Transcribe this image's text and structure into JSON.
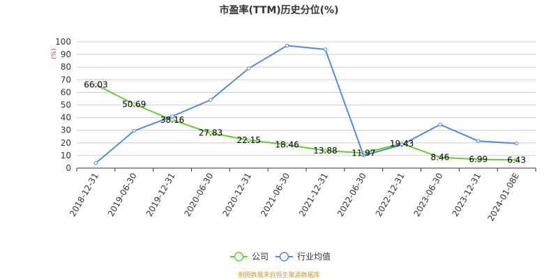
{
  "chart_data": {
    "type": "line",
    "title": "市盈率(TTM)历史分位(%)",
    "y_unit": "(%)",
    "categories": [
      "2018-12-31",
      "2019-06-30",
      "2019-12-31",
      "2020-06-30",
      "2020-12-31",
      "2021-06-30",
      "2021-12-31",
      "2022-06-30",
      "2022-12-31",
      "2023-06-30",
      "2023-12-31",
      "2024-01-08E"
    ],
    "ylim": [
      0,
      100
    ],
    "yticks": [
      0,
      10,
      20,
      30,
      40,
      50,
      60,
      70,
      80,
      90,
      100
    ],
    "grid": true,
    "legend_position": "bottom",
    "series": [
      {
        "name": "公司",
        "color": "#66cc33",
        "values": [
          66.03,
          50.69,
          38.16,
          27.83,
          22.15,
          18.46,
          13.88,
          11.97,
          19.43,
          8.46,
          6.99,
          6.43
        ],
        "labels": [
          "66.03",
          "50.69",
          "38.16",
          "27.83",
          "22.15",
          "18.46",
          "13.88",
          "11.97",
          "19.43",
          "8.46",
          "6.99",
          "6.43"
        ]
      },
      {
        "name": "行业均值",
        "color": "#5588dd",
        "values": [
          4,
          29.5,
          41,
          54,
          79,
          97,
          94,
          10,
          18.5,
          34.5,
          21.5,
          19.5
        ]
      }
    ]
  },
  "source_note": "制图数据来自恒生聚源数据库",
  "colors": {
    "source_note": "#cc9933",
    "unit": "#dd3333",
    "grid": "#cccccc",
    "axis": "#333333"
  }
}
